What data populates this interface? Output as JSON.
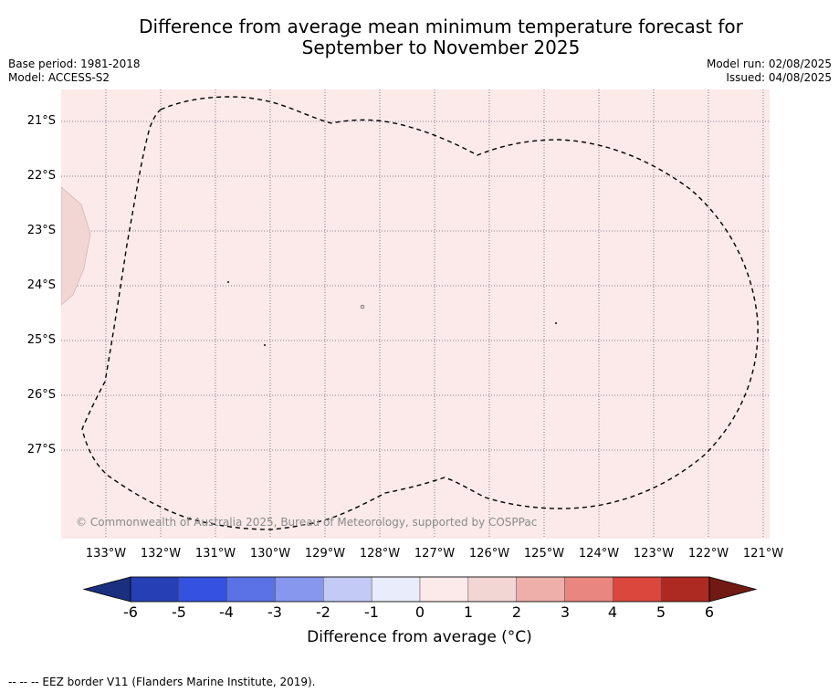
{
  "title": {
    "line1": "Difference from average mean minimum temperature forecast for",
    "line2": "September to November 2025"
  },
  "meta": {
    "base_period": "Base period: 1981-2018",
    "model": "Model: ACCESS-S2",
    "model_run": "Model run: 02/08/2025",
    "issued": "Issued: 04/08/2025"
  },
  "map": {
    "copyright": "© Commonwealth of Australia 2025, Bureau of Meteorology, supported by COSPPac",
    "background_color": "#fbeae9",
    "land_color": "#f2d6d4",
    "lat_labels": [
      "21°S",
      "22°S",
      "23°S",
      "24°S",
      "25°S",
      "26°S",
      "27°S"
    ],
    "lon_labels": [
      "133°W",
      "132°W",
      "131°W",
      "130°W",
      "129°W",
      "128°W",
      "127°W",
      "126°W",
      "125°W",
      "124°W",
      "123°W",
      "122°W",
      "121°W"
    ]
  },
  "colorbar": {
    "title": "Difference from average (°C)",
    "ticks": [
      "-6",
      "-5",
      "-4",
      "-3",
      "-2",
      "-1",
      "0",
      "1",
      "2",
      "3",
      "4",
      "5",
      "6"
    ],
    "colors": [
      "#1a2f80",
      "#2540b5",
      "#3451e0",
      "#5a72e6",
      "#8797ee",
      "#c3caf5",
      "#e9ecfb",
      "#fbeae9",
      "#f2d6d4",
      "#eeaea9",
      "#e8867f",
      "#db473d",
      "#ad2a22",
      "#711a14"
    ]
  },
  "footnote": "--  --  -- EEZ border V11 (Flanders Marine Institute, 2019)."
}
